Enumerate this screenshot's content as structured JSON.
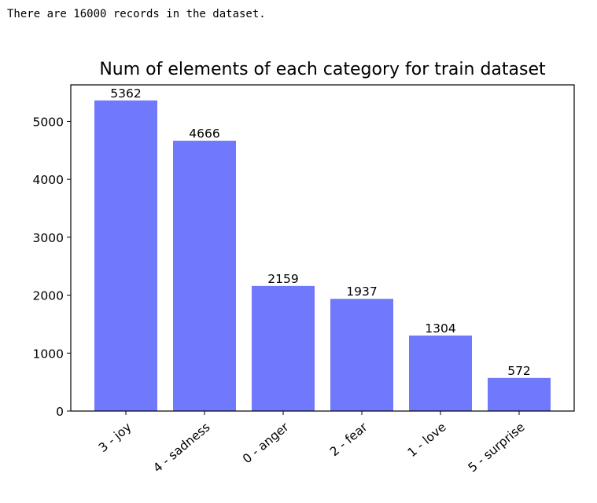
{
  "output": {
    "text": "There are 16000 records in the dataset."
  },
  "colors": {
    "bar": "#7079fc",
    "axis": "#000000"
  },
  "chart_data": {
    "type": "bar",
    "title": "Num of elements of each category for train dataset",
    "xlabel": "",
    "ylabel": "",
    "categories": [
      "3 - joy",
      "4 - sadness",
      "0 - anger",
      "2 - fear",
      "1 - love",
      "5 - surprise"
    ],
    "values": [
      5362,
      4666,
      2159,
      1937,
      1304,
      572
    ],
    "value_labels": [
      "5362",
      "4666",
      "2159",
      "1937",
      "1304",
      "572"
    ],
    "ylim": [
      0,
      5630
    ],
    "yticks": [
      0,
      1000,
      2000,
      3000,
      4000,
      5000
    ],
    "ytick_labels": [
      "0",
      "1000",
      "2000",
      "3000",
      "4000",
      "5000"
    ],
    "grid": false,
    "legend": "none"
  }
}
